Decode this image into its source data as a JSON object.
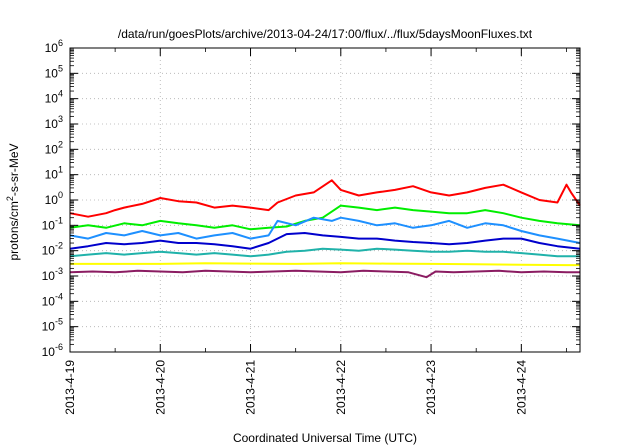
{
  "chart_data": {
    "type": "line",
    "title": "/data/run/goesPlots/archive/2013-04-24/17:00/flux/../flux/5daysMoonFluxes.txt",
    "xlabel": "Coordinated Universal Time (UTC)",
    "ylabel": {
      "prefix": "protons/cm",
      "sup": "2",
      "suffix": "-s-sr-MeV"
    },
    "yscale": "log",
    "ylim": [
      1e-06,
      1000000.0
    ],
    "xlim": [
      0,
      5.65
    ],
    "grid": true,
    "legend": "none",
    "x_ticks": [
      {
        "day": 0,
        "label": "2013-4-19"
      },
      {
        "day": 1,
        "label": "2013-4-20"
      },
      {
        "day": 2,
        "label": "2013-4-21"
      },
      {
        "day": 3,
        "label": "2013-4-22"
      },
      {
        "day": 4,
        "label": "2013-4-23"
      },
      {
        "day": 5,
        "label": "2013-4-24"
      }
    ],
    "y_ticks": [
      {
        "exp": 6,
        "base": "10",
        "sup": "6"
      },
      {
        "exp": 5,
        "base": "10",
        "sup": "5"
      },
      {
        "exp": 4,
        "base": "10",
        "sup": "4"
      },
      {
        "exp": 3,
        "base": "10",
        "sup": "3"
      },
      {
        "exp": 2,
        "base": "10",
        "sup": "2"
      },
      {
        "exp": 1,
        "base": "10",
        "sup": "1"
      },
      {
        "exp": 0,
        "base": "10",
        "sup": "0"
      },
      {
        "exp": -1,
        "base": "10",
        "sup": "-1"
      },
      {
        "exp": -2,
        "base": "10",
        "sup": "-2"
      },
      {
        "exp": -3,
        "base": "10",
        "sup": "-3"
      },
      {
        "exp": -4,
        "base": "10",
        "sup": "-4"
      },
      {
        "exp": -5,
        "base": "10",
        "sup": "-5"
      },
      {
        "exp": -6,
        "base": "10",
        "sup": "-6"
      }
    ],
    "series": [
      {
        "color": "#ff0000",
        "x": [
          0,
          0.2,
          0.4,
          0.5,
          0.6,
          0.8,
          1.0,
          1.2,
          1.4,
          1.6,
          1.8,
          2.0,
          2.2,
          2.3,
          2.5,
          2.7,
          2.9,
          3.0,
          3.2,
          3.4,
          3.6,
          3.8,
          4.0,
          4.2,
          4.4,
          4.6,
          4.8,
          5.0,
          5.2,
          5.4,
          5.5,
          5.55,
          5.65
        ],
        "values": [
          0.3,
          0.22,
          0.3,
          0.4,
          0.5,
          0.7,
          1.2,
          0.9,
          0.8,
          0.5,
          0.6,
          0.5,
          0.4,
          0.8,
          1.5,
          2.0,
          6.0,
          2.5,
          1.5,
          2.0,
          2.5,
          3.5,
          2.0,
          1.5,
          2.0,
          3.0,
          4.0,
          2.0,
          1.0,
          0.8,
          4.0,
          2.0,
          0.6
        ]
      },
      {
        "color": "#00ee00",
        "x": [
          0,
          0.2,
          0.4,
          0.6,
          0.8,
          1.0,
          1.2,
          1.4,
          1.6,
          1.8,
          2.0,
          2.2,
          2.4,
          2.6,
          2.8,
          3.0,
          3.2,
          3.4,
          3.6,
          3.8,
          4.0,
          4.2,
          4.4,
          4.6,
          4.8,
          5.0,
          5.2,
          5.4,
          5.65
        ],
        "values": [
          0.08,
          0.1,
          0.08,
          0.12,
          0.1,
          0.15,
          0.12,
          0.1,
          0.08,
          0.1,
          0.07,
          0.08,
          0.09,
          0.15,
          0.2,
          0.6,
          0.5,
          0.4,
          0.5,
          0.4,
          0.35,
          0.3,
          0.3,
          0.4,
          0.3,
          0.2,
          0.15,
          0.12,
          0.1
        ]
      },
      {
        "color": "#1e90ff",
        "x": [
          0,
          0.2,
          0.4,
          0.6,
          0.8,
          1.0,
          1.2,
          1.4,
          1.6,
          1.8,
          2.0,
          2.2,
          2.3,
          2.5,
          2.7,
          2.9,
          3.0,
          3.2,
          3.4,
          3.6,
          3.8,
          4.0,
          4.2,
          4.4,
          4.6,
          4.8,
          5.0,
          5.2,
          5.4,
          5.65
        ],
        "values": [
          0.04,
          0.03,
          0.05,
          0.04,
          0.06,
          0.04,
          0.05,
          0.03,
          0.04,
          0.05,
          0.03,
          0.04,
          0.15,
          0.1,
          0.2,
          0.15,
          0.2,
          0.15,
          0.1,
          0.12,
          0.08,
          0.1,
          0.15,
          0.08,
          0.12,
          0.1,
          0.06,
          0.04,
          0.03,
          0.02
        ]
      },
      {
        "color": "#0000cc",
        "x": [
          0,
          0.2,
          0.4,
          0.6,
          0.8,
          1.0,
          1.2,
          1.4,
          1.6,
          1.8,
          2.0,
          2.2,
          2.4,
          2.6,
          2.8,
          3.0,
          3.2,
          3.4,
          3.6,
          3.8,
          4.0,
          4.2,
          4.4,
          4.6,
          4.8,
          5.0,
          5.2,
          5.4,
          5.65
        ],
        "values": [
          0.012,
          0.015,
          0.02,
          0.018,
          0.02,
          0.025,
          0.02,
          0.02,
          0.018,
          0.015,
          0.012,
          0.02,
          0.045,
          0.05,
          0.04,
          0.035,
          0.03,
          0.03,
          0.025,
          0.022,
          0.02,
          0.018,
          0.02,
          0.025,
          0.03,
          0.03,
          0.02,
          0.015,
          0.012
        ]
      },
      {
        "color": "#20b2aa",
        "x": [
          0,
          0.2,
          0.4,
          0.6,
          0.8,
          1.0,
          1.2,
          1.4,
          1.6,
          1.8,
          2.0,
          2.2,
          2.4,
          2.6,
          2.8,
          3.0,
          3.2,
          3.4,
          3.6,
          3.8,
          4.0,
          4.2,
          4.4,
          4.6,
          4.8,
          5.0,
          5.2,
          5.4,
          5.65
        ],
        "values": [
          0.006,
          0.007,
          0.008,
          0.007,
          0.008,
          0.009,
          0.008,
          0.007,
          0.008,
          0.007,
          0.006,
          0.007,
          0.009,
          0.01,
          0.012,
          0.011,
          0.01,
          0.012,
          0.011,
          0.01,
          0.009,
          0.009,
          0.01,
          0.009,
          0.009,
          0.008,
          0.007,
          0.006,
          0.006
        ]
      },
      {
        "color": "#ffff00",
        "x": [
          0,
          0.5,
          1.0,
          1.5,
          2.0,
          2.5,
          3.0,
          3.5,
          4.0,
          4.5,
          5.0,
          5.5,
          5.65
        ],
        "values": [
          0.003,
          0.003,
          0.003,
          0.0032,
          0.0031,
          0.003,
          0.0032,
          0.0031,
          0.003,
          0.0029,
          0.0028,
          0.0027,
          0.0027
        ]
      },
      {
        "color": "#8b1c62",
        "x": [
          0,
          0.25,
          0.5,
          0.75,
          1.0,
          1.25,
          1.5,
          1.75,
          2.0,
          2.25,
          2.5,
          2.75,
          3.0,
          3.25,
          3.5,
          3.75,
          3.95,
          4.05,
          4.25,
          4.5,
          4.75,
          5.0,
          5.25,
          5.5,
          5.65
        ],
        "values": [
          0.0014,
          0.0015,
          0.0014,
          0.0016,
          0.0015,
          0.0014,
          0.0016,
          0.0015,
          0.0014,
          0.0015,
          0.0016,
          0.0015,
          0.0014,
          0.0016,
          0.0015,
          0.0014,
          0.0009,
          0.0015,
          0.0014,
          0.0015,
          0.0016,
          0.0014,
          0.0015,
          0.0014,
          0.0014
        ]
      }
    ]
  }
}
